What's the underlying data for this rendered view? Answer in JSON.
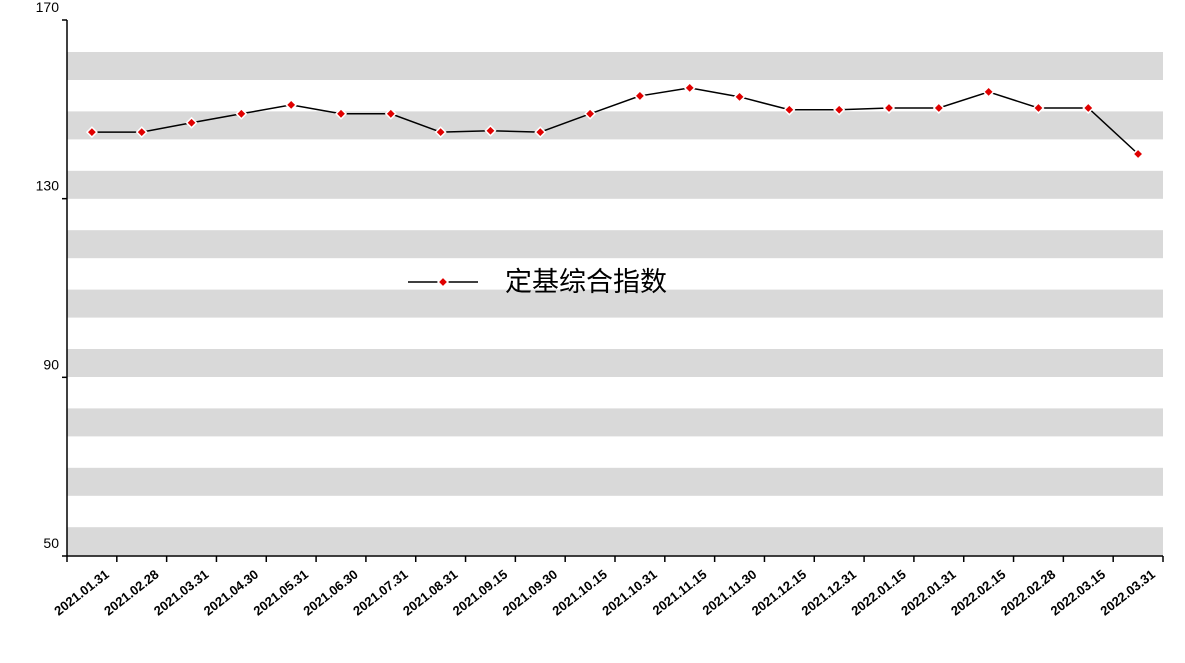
{
  "chart_data": {
    "type": "line",
    "categories": [
      "2021.01.31",
      "2021.02.28",
      "2021.03.31",
      "2021.04.30",
      "2021.05.31",
      "2021.06.30",
      "2021.07.31",
      "2021.08.31",
      "2021.09.15",
      "2021.09.30",
      "2021.10.15",
      "2021.10.31",
      "2021.11.15",
      "2021.11.30",
      "2021.12.15",
      "2021.12.31",
      "2022.01.15",
      "2022.01.31",
      "2022.02.15",
      "2022.02.28",
      "2022.03.15",
      "2022.03.31"
    ],
    "series": [
      {
        "name": "定基综合指数",
        "color": "#000000",
        "marker_color": "#e00000",
        "values": [
          144.9,
          144.9,
          147.0,
          149.0,
          151.0,
          149.0,
          149.0,
          144.9,
          145.2,
          144.9,
          149.0,
          153.0,
          154.8,
          152.8,
          149.9,
          149.9,
          150.3,
          150.3,
          153.9,
          150.3,
          150.3,
          140.0
        ]
      }
    ],
    "ylim": [
      50,
      170
    ],
    "yticks": [
      50,
      90,
      130,
      170
    ],
    "grid": false
  }
}
